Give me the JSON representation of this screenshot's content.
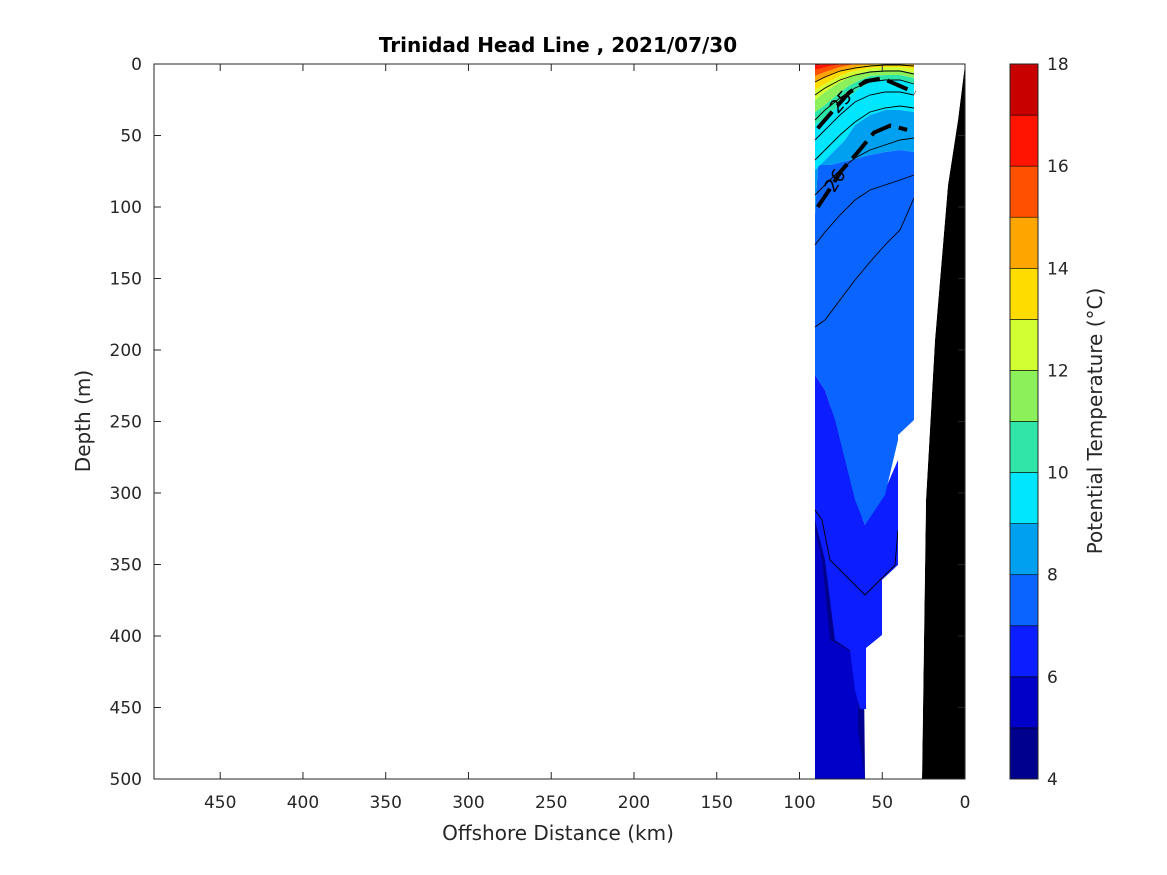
{
  "chart_data": {
    "type": "heatmap",
    "title": "Trinidad Head Line , 2021/07/30",
    "xlabel": "Offshore Distance (km)",
    "ylabel": "Depth (m)",
    "xlim": [
      490,
      0
    ],
    "ylim": [
      0,
      500
    ],
    "x_reversed": true,
    "y_reversed": true,
    "x_ticks": [
      "450",
      "400",
      "350",
      "300",
      "250",
      "200",
      "150",
      "100",
      "50",
      "0"
    ],
    "y_ticks": [
      "0",
      "50",
      "100",
      "150",
      "200",
      "250",
      "300",
      "350",
      "400",
      "450",
      "500"
    ],
    "colorbar": {
      "label": "Potential Temperature (°C)",
      "range": [
        4,
        18
      ],
      "step": 1,
      "tick_labels": [
        "4",
        "6",
        "8",
        "10",
        "12",
        "14",
        "16",
        "18"
      ],
      "colors": [
        "#00008f",
        "#0000c8",
        "#0c1eff",
        "#0a64ff",
        "#00a0f0",
        "#00e6ff",
        "#2fe6a8",
        "#8cf05a",
        "#d2ff32",
        "#ffdc00",
        "#ffa500",
        "#ff5000",
        "#ff1400",
        "#c80000"
      ]
    },
    "sampled_region": {
      "x_km": [
        89,
        30
      ],
      "max_depth_m": 500
    },
    "bathymetry_color": "#000000",
    "temperature_bands": [
      {
        "band": "4-5",
        "color": "#00008f"
      },
      {
        "band": "5-6",
        "color": "#0000c8"
      },
      {
        "band": "6-7",
        "color": "#0c1eff"
      },
      {
        "band": "7-8",
        "color": "#0a64ff"
      },
      {
        "band": "8-9",
        "color": "#00a0f0"
      },
      {
        "band": "9-10",
        "color": "#00e6ff"
      },
      {
        "band": "10-11",
        "color": "#2fe6a8"
      },
      {
        "band": "11-12",
        "color": "#8cf05a"
      },
      {
        "band": "12-13",
        "color": "#d2ff32"
      },
      {
        "band": "13-14",
        "color": "#ffdc00"
      },
      {
        "band": "14-15",
        "color": "#ffa500"
      },
      {
        "band": "15-16",
        "color": "#ff5000"
      },
      {
        "band": "16-17",
        "color": "#ff1400"
      },
      {
        "band": "17-18",
        "color": "#c80000"
      }
    ],
    "density_contours": [
      {
        "label": "25",
        "points": [
          [
            89,
            45
          ],
          [
            80,
            33
          ],
          [
            70,
            20
          ],
          [
            60,
            12
          ],
          [
            50,
            10
          ],
          [
            40,
            15
          ],
          [
            30,
            20
          ]
        ]
      },
      {
        "label": "26",
        "points": [
          [
            89,
            100
          ],
          [
            82,
            88
          ],
          [
            75,
            75
          ],
          [
            65,
            62
          ],
          [
            55,
            48
          ],
          [
            45,
            43
          ],
          [
            35,
            46
          ]
        ]
      }
    ]
  }
}
